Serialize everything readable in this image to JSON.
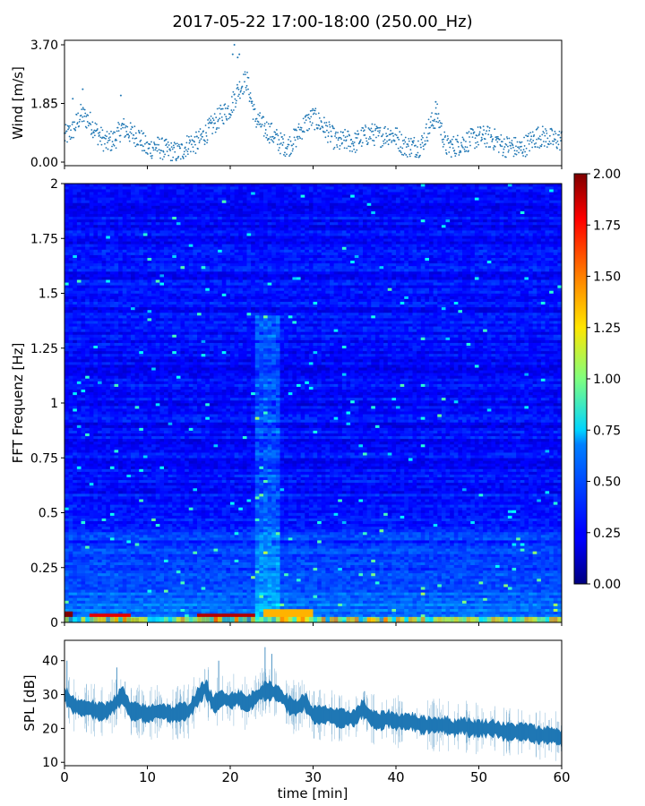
{
  "title": "2017-05-22 17:00-18:00 (250.00_Hz)",
  "chart_data": [
    {
      "type": "scatter",
      "panel": "wind",
      "ylabel": "Wind [m/s]",
      "yticks": [
        "0.00",
        "1.85",
        "3.70"
      ],
      "ylim": [
        0,
        3.7
      ],
      "xlim": [
        0,
        60
      ],
      "marker_color": "#1f77b4",
      "wind_profile": {
        "x": [
          0,
          1,
          2,
          3,
          4,
          5,
          6,
          7,
          8,
          9,
          10,
          11,
          12,
          13,
          14,
          15,
          16,
          17,
          18,
          19,
          20,
          21,
          22,
          23,
          24,
          25,
          26,
          27,
          28,
          29,
          30,
          31,
          32,
          33,
          34,
          35,
          36,
          37,
          38,
          39,
          40,
          41,
          42,
          43,
          44,
          45,
          46,
          47,
          48,
          49,
          50,
          51,
          52,
          53,
          54,
          55,
          56,
          57,
          58,
          59,
          60
        ],
        "y": [
          0.8,
          1.0,
          1.5,
          1.3,
          0.9,
          0.6,
          0.7,
          1.1,
          0.9,
          0.8,
          0.4,
          0.5,
          0.4,
          0.3,
          0.3,
          0.6,
          0.6,
          0.9,
          1.2,
          1.5,
          1.7,
          2.3,
          2.6,
          1.4,
          1.1,
          0.9,
          0.6,
          0.5,
          0.8,
          1.2,
          1.4,
          1.2,
          0.9,
          0.6,
          0.7,
          0.6,
          0.8,
          0.9,
          0.8,
          0.9,
          0.8,
          0.5,
          0.5,
          0.5,
          1.1,
          1.5,
          0.5,
          0.5,
          0.6,
          0.7,
          0.8,
          0.8,
          0.7,
          0.5,
          0.5,
          0.4,
          0.6,
          0.8,
          0.8,
          0.7,
          0.7
        ]
      },
      "wind_spread": 0.35,
      "wind_outliers": [
        {
          "x": 20.5,
          "y": 3.7
        },
        {
          "x": 20.3,
          "y": 3.4
        },
        {
          "x": 20.9,
          "y": 3.3
        },
        {
          "x": 21.1,
          "y": 3.4
        },
        {
          "x": 6.8,
          "y": 2.1
        },
        {
          "x": 2.2,
          "y": 2.3
        },
        {
          "x": 1.0,
          "y": 2.0
        },
        {
          "x": 44.8,
          "y": 1.9
        }
      ]
    },
    {
      "type": "heatmap",
      "panel": "spectrogram",
      "ylabel": "FFT Frequenz [Hz]",
      "yticks": [
        "0",
        "0.25",
        "0.5",
        "0.75",
        "1",
        "1.25",
        "1.5",
        "1.75",
        "2"
      ],
      "ylim": [
        0,
        2
      ],
      "xlim": [
        0,
        60
      ],
      "colorbar": {
        "ticks": [
          "0.00",
          "0.25",
          "0.50",
          "0.75",
          "1.00",
          "1.25",
          "1.50",
          "1.75",
          "2.00"
        ],
        "range": [
          0,
          2
        ],
        "colormap": "jet"
      },
      "bright_band": {
        "x_start": 23,
        "x_end": 26,
        "freq_max": 1.4
      },
      "low_frequency_energy": [
        {
          "x_start": 0,
          "x_end": 1,
          "freq_max": 0.05,
          "value": 2.0
        },
        {
          "x_start": 3,
          "x_end": 8,
          "freq_max": 0.04,
          "value": 1.8
        },
        {
          "x_start": 6,
          "x_end": 9,
          "freq_max": 0.02,
          "value": 2.0
        },
        {
          "x_start": 16,
          "x_end": 23,
          "freq_max": 0.04,
          "value": 1.9
        },
        {
          "x_start": 24,
          "x_end": 30,
          "freq_max": 0.06,
          "value": 1.4
        },
        {
          "x_start": 36,
          "x_end": 39,
          "freq_max": 0.02,
          "value": 1.7
        }
      ]
    },
    {
      "type": "area",
      "panel": "spl",
      "xlabel": "time [min]",
      "ylabel": "SPL [dB]",
      "xticks": [
        "0",
        "10",
        "20",
        "30",
        "40",
        "50",
        "60"
      ],
      "yticks": [
        "10",
        "20",
        "30",
        "40"
      ],
      "ylim": [
        9,
        46
      ],
      "xlim": [
        0,
        60
      ],
      "color": "#1f77b4",
      "series": [
        {
          "x": [
            0,
            1,
            2,
            3,
            4,
            5,
            6,
            7,
            8,
            9,
            10,
            11,
            12,
            13,
            14,
            15,
            16,
            17,
            18,
            19,
            20,
            21,
            22,
            23,
            24,
            25,
            26,
            27,
            28,
            29,
            30,
            31,
            32,
            33,
            34,
            35,
            36,
            37,
            38,
            39,
            40,
            41,
            42,
            43,
            44,
            45,
            46,
            47,
            48,
            49,
            50,
            51,
            52,
            53,
            54,
            55,
            56,
            57,
            58,
            59,
            60
          ],
          "y": [
            30,
            27,
            26,
            26,
            25,
            25,
            27,
            30,
            25,
            25,
            24,
            25,
            25,
            24,
            25,
            25,
            29,
            32,
            27,
            29,
            28,
            29,
            27,
            29,
            31,
            31,
            30,
            27,
            26,
            28,
            24,
            24,
            24,
            23,
            23,
            23,
            26,
            23,
            22,
            23,
            22,
            22,
            22,
            21,
            21,
            21,
            21,
            20,
            21,
            20,
            20,
            20,
            20,
            19,
            19,
            19,
            19,
            18,
            18,
            18,
            17
          ]
        }
      ],
      "spl_spread": 2.2,
      "spl_spikes": [
        {
          "x": 0.3,
          "y": 40
        },
        {
          "x": 24.2,
          "y": 44
        },
        {
          "x": 25.0,
          "y": 42
        },
        {
          "x": 18.6,
          "y": 40
        },
        {
          "x": 6.3,
          "y": 38
        },
        {
          "x": 36.2,
          "y": 31
        }
      ]
    }
  ]
}
